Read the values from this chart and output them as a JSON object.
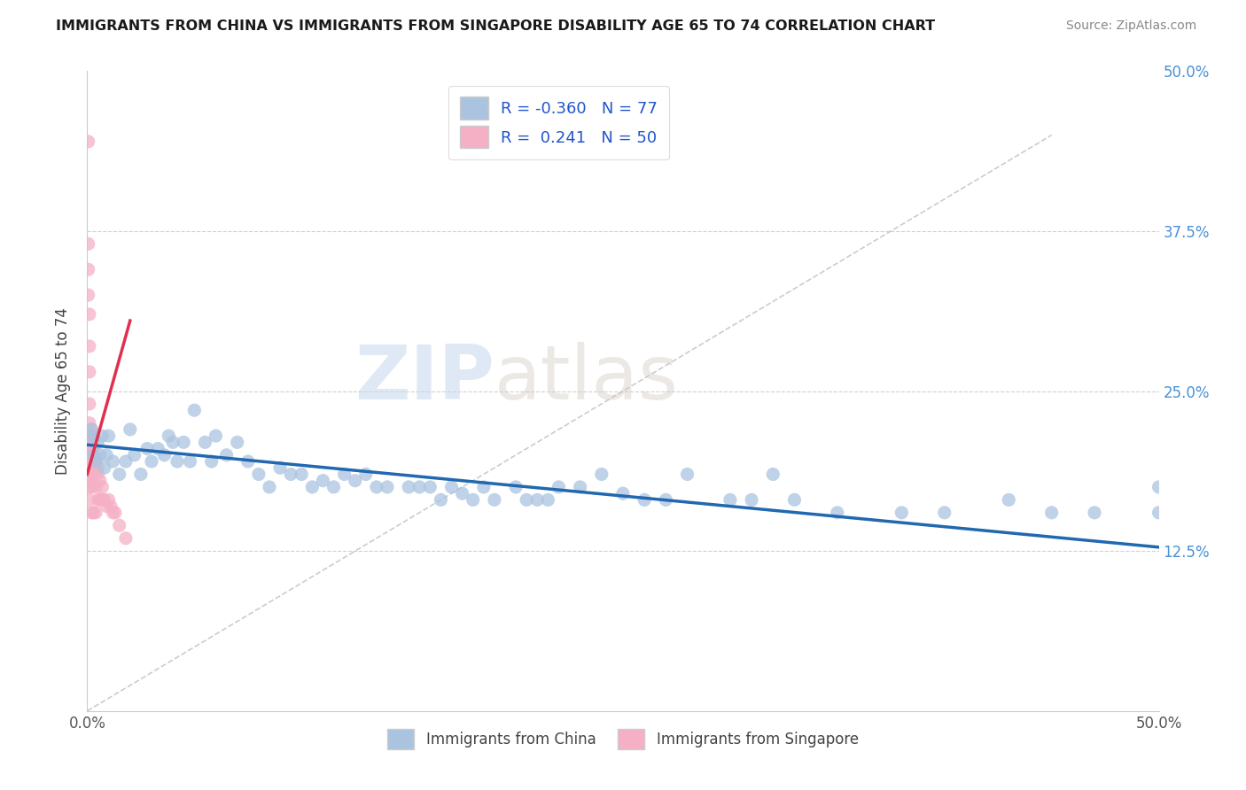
{
  "title": "IMMIGRANTS FROM CHINA VS IMMIGRANTS FROM SINGAPORE DISABILITY AGE 65 TO 74 CORRELATION CHART",
  "source": "Source: ZipAtlas.com",
  "ylabel": "Disability Age 65 to 74",
  "xlim": [
    0.0,
    0.5
  ],
  "ylim": [
    0.0,
    0.5
  ],
  "R_china": -0.36,
  "N_china": 77,
  "R_singapore": 0.241,
  "N_singapore": 50,
  "china_color": "#aac4df",
  "singapore_color": "#f5b0c5",
  "china_line_color": "#2068b0",
  "singapore_line_color": "#e03050",
  "watermark_zip": "ZIP",
  "watermark_atlas": "atlas",
  "legend_china": "Immigrants from China",
  "legend_singapore": "Immigrants from Singapore",
  "china_x": [
    0.001,
    0.002,
    0.003,
    0.004,
    0.005,
    0.006,
    0.007,
    0.008,
    0.009,
    0.01,
    0.012,
    0.015,
    0.018,
    0.02,
    0.022,
    0.025,
    0.028,
    0.03,
    0.033,
    0.036,
    0.038,
    0.04,
    0.042,
    0.045,
    0.048,
    0.05,
    0.055,
    0.058,
    0.06,
    0.065,
    0.07,
    0.075,
    0.08,
    0.085,
    0.09,
    0.095,
    0.1,
    0.105,
    0.11,
    0.115,
    0.12,
    0.125,
    0.13,
    0.135,
    0.14,
    0.15,
    0.155,
    0.16,
    0.165,
    0.17,
    0.175,
    0.18,
    0.185,
    0.19,
    0.2,
    0.205,
    0.21,
    0.215,
    0.22,
    0.23,
    0.24,
    0.25,
    0.26,
    0.27,
    0.28,
    0.3,
    0.31,
    0.32,
    0.33,
    0.35,
    0.38,
    0.4,
    0.43,
    0.45,
    0.47,
    0.5,
    0.5
  ],
  "china_y": [
    0.215,
    0.22,
    0.2,
    0.195,
    0.21,
    0.2,
    0.215,
    0.19,
    0.2,
    0.215,
    0.195,
    0.185,
    0.195,
    0.22,
    0.2,
    0.185,
    0.205,
    0.195,
    0.205,
    0.2,
    0.215,
    0.21,
    0.195,
    0.21,
    0.195,
    0.235,
    0.21,
    0.195,
    0.215,
    0.2,
    0.21,
    0.195,
    0.185,
    0.175,
    0.19,
    0.185,
    0.185,
    0.175,
    0.18,
    0.175,
    0.185,
    0.18,
    0.185,
    0.175,
    0.175,
    0.175,
    0.175,
    0.175,
    0.165,
    0.175,
    0.17,
    0.165,
    0.175,
    0.165,
    0.175,
    0.165,
    0.165,
    0.165,
    0.175,
    0.175,
    0.185,
    0.17,
    0.165,
    0.165,
    0.185,
    0.165,
    0.165,
    0.185,
    0.165,
    0.155,
    0.155,
    0.155,
    0.165,
    0.155,
    0.155,
    0.155,
    0.175
  ],
  "singapore_x": [
    0.0005,
    0.0005,
    0.0005,
    0.0005,
    0.001,
    0.001,
    0.001,
    0.001,
    0.001,
    0.001,
    0.001,
    0.001,
    0.001,
    0.001,
    0.001,
    0.001,
    0.001,
    0.001,
    0.0015,
    0.0015,
    0.002,
    0.002,
    0.002,
    0.002,
    0.002,
    0.002,
    0.0025,
    0.0025,
    0.003,
    0.003,
    0.003,
    0.003,
    0.004,
    0.004,
    0.004,
    0.005,
    0.005,
    0.005,
    0.006,
    0.006,
    0.007,
    0.007,
    0.008,
    0.009,
    0.01,
    0.011,
    0.012,
    0.013,
    0.015,
    0.018
  ],
  "singapore_y": [
    0.445,
    0.365,
    0.345,
    0.325,
    0.31,
    0.285,
    0.265,
    0.24,
    0.225,
    0.215,
    0.21,
    0.205,
    0.2,
    0.195,
    0.185,
    0.18,
    0.175,
    0.165,
    0.215,
    0.19,
    0.22,
    0.215,
    0.195,
    0.185,
    0.175,
    0.155,
    0.2,
    0.195,
    0.205,
    0.195,
    0.185,
    0.155,
    0.195,
    0.175,
    0.155,
    0.19,
    0.185,
    0.165,
    0.18,
    0.165,
    0.175,
    0.165,
    0.165,
    0.16,
    0.165,
    0.16,
    0.155,
    0.155,
    0.145,
    0.135
  ],
  "china_trendline_x": [
    0.0,
    0.5
  ],
  "china_trendline_y": [
    0.208,
    0.128
  ],
  "singapore_trendline_x": [
    0.0,
    0.02
  ],
  "singapore_trendline_y": [
    0.185,
    0.305
  ]
}
